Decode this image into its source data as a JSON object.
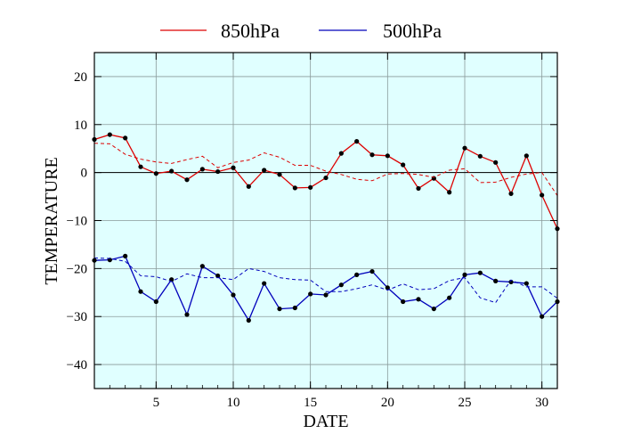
{
  "chart_data": {
    "type": "line",
    "xlabel": "DATE",
    "ylabel": "TEMPERATURE",
    "xlim": [
      1,
      31
    ],
    "ylim": [
      -45,
      25
    ],
    "xticks": [
      5,
      10,
      15,
      20,
      25,
      30
    ],
    "yticks": [
      -40,
      -30,
      -20,
      -10,
      0,
      10,
      20
    ],
    "xtick_labels": [
      "5",
      "10",
      "15",
      "20",
      "25",
      "30"
    ],
    "ytick_labels": [
      "−40",
      "−30",
      "−20",
      "−10",
      "0",
      "10",
      "20"
    ],
    "grid": true,
    "plot_background": "#e0ffff",
    "legend": {
      "placement": "top-center",
      "entries": [
        {
          "label": "850hPa",
          "color": "#dd0000"
        },
        {
          "label": "500hPa",
          "color": "#0000bb"
        }
      ]
    },
    "x": [
      1,
      2,
      3,
      4,
      5,
      6,
      7,
      8,
      9,
      10,
      11,
      12,
      13,
      14,
      15,
      16,
      17,
      18,
      19,
      20,
      21,
      22,
      23,
      24,
      25,
      26,
      27,
      28,
      29,
      30,
      31
    ],
    "series": [
      {
        "name": "850hPa",
        "color": "#dd0000",
        "style": "solid",
        "markers": true,
        "values": [
          6.9,
          7.9,
          7.2,
          1.2,
          -0.2,
          0.3,
          -1.5,
          0.7,
          0.2,
          1.0,
          -2.9,
          0.5,
          -0.4,
          -3.2,
          -3.1,
          -1.1,
          4.0,
          6.5,
          3.7,
          3.5,
          1.6,
          -3.3,
          -1.2,
          -4.1,
          5.1,
          3.4,
          2.1,
          -4.4,
          3.5,
          -4.7,
          -11.7
        ]
      },
      {
        "name": "850hPa dashed",
        "color": "#dd0000",
        "style": "dashed",
        "markers": false,
        "values": [
          6.1,
          6.0,
          3.8,
          2.8,
          2.2,
          1.9,
          2.7,
          3.4,
          1.0,
          2.1,
          2.6,
          4.1,
          3.2,
          1.5,
          1.5,
          0.3,
          -0.4,
          -1.4,
          -1.7,
          -0.3,
          -0.2,
          -0.4,
          -1.0,
          0.5,
          0.8,
          -2.1,
          -2.0,
          -1.0,
          -0.3,
          0.0,
          -4.8
        ]
      },
      {
        "name": "500hPa",
        "color": "#0000bb",
        "style": "solid",
        "markers": true,
        "values": [
          -18.3,
          -18.2,
          -17.4,
          -24.8,
          -26.9,
          -22.3,
          -29.6,
          -19.5,
          -21.5,
          -25.5,
          -30.8,
          -23.1,
          -28.4,
          -28.2,
          -25.3,
          -25.5,
          -23.4,
          -21.3,
          -20.6,
          -24.0,
          -26.9,
          -26.4,
          -28.4,
          -26.1,
          -21.3,
          -20.9,
          -22.6,
          -22.8,
          -23.1,
          -30.0,
          -26.9
        ]
      },
      {
        "name": "500hPa dashed",
        "color": "#0000bb",
        "style": "dashed",
        "markers": false,
        "values": [
          -17.8,
          -17.9,
          -18.5,
          -21.5,
          -21.7,
          -22.7,
          -21.1,
          -21.9,
          -21.9,
          -22.3,
          -20.0,
          -20.6,
          -21.9,
          -22.3,
          -22.4,
          -24.8,
          -24.8,
          -24.2,
          -23.4,
          -24.5,
          -23.2,
          -24.4,
          -24.2,
          -22.5,
          -21.9,
          -26.1,
          -27.1,
          -22.4,
          -23.8,
          -23.8,
          -26.2
        ]
      }
    ]
  }
}
